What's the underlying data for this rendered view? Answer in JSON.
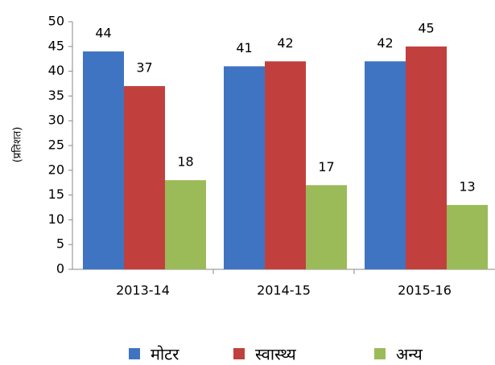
{
  "chart_data": {
    "type": "bar",
    "y_label": "(प्रतिशत)",
    "categories": [
      "2013-14",
      "2014-15",
      "2015-16"
    ],
    "series": [
      {
        "name": "मोटर",
        "color": "#3f74c2",
        "values": [
          44,
          41,
          42
        ]
      },
      {
        "name": "स्वास्थ्य",
        "color": "#c1403e",
        "values": [
          37,
          42,
          45
        ]
      },
      {
        "name": "अन्य",
        "color": "#9bbb59",
        "values": [
          18,
          17,
          13
        ]
      }
    ],
    "ylim": [
      0,
      50
    ],
    "yticks": [
      0,
      5,
      10,
      15,
      20,
      25,
      30,
      35,
      40,
      45,
      50
    ],
    "grid": false,
    "legend": "bottom"
  }
}
